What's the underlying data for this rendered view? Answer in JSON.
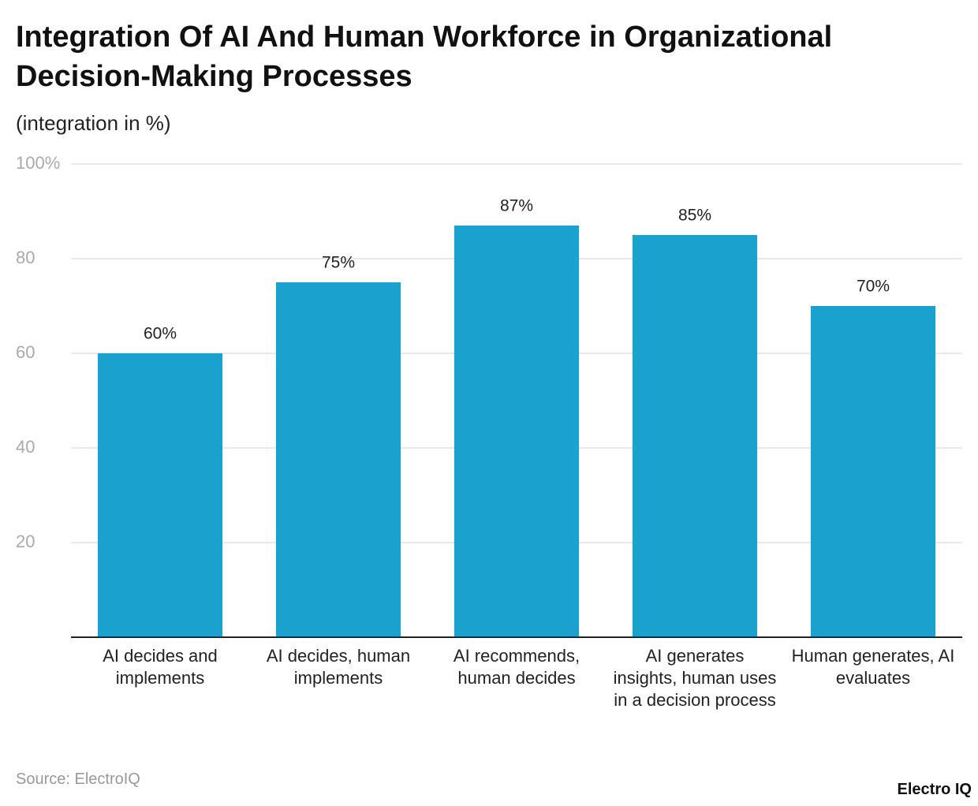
{
  "chart_data": {
    "type": "bar",
    "title": "Integration Of AI And Human Workforce in Organizational Decision-Making Processes",
    "subtitle": "(integration in %)",
    "categories": [
      "AI decides and implements",
      "AI decides, human implements",
      "AI recommends, human decides",
      "AI generates insights, human uses in a decision process",
      "Human generates, AI evaluates"
    ],
    "values": [
      60,
      75,
      87,
      85,
      70
    ],
    "value_labels": [
      "60%",
      "75%",
      "87%",
      "85%",
      "70%"
    ],
    "color": "#1aa1cd",
    "ylim": [
      0,
      100
    ],
    "yticks": [
      20,
      40,
      60,
      80,
      {
        "value": 100,
        "label": "100%"
      }
    ],
    "grid": true,
    "source": "Source: ElectroIQ",
    "logo": "Electro IQ"
  }
}
